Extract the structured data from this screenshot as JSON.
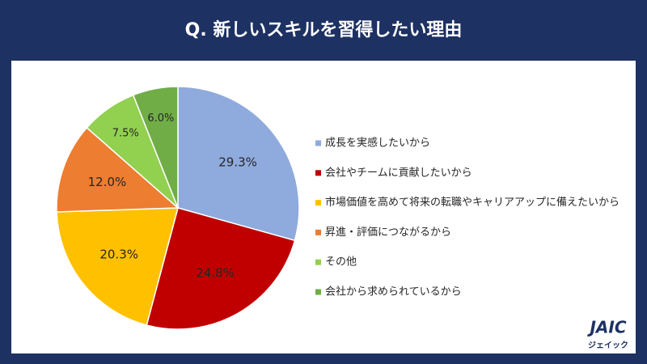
{
  "chart_data": {
    "type": "pie",
    "title": "Q. 新しいスキルを習得したい理由",
    "categories": [
      "成長を実感したいから",
      "会社やチームに貢献したいから",
      "市場価値を高めて将来の転職やキャリアアップに備えたいから",
      "昇進・評価につながるから",
      "その他",
      "会社から求められているから"
    ],
    "values": [
      29.3,
      24.8,
      20.3,
      12.0,
      7.5,
      6.0
    ],
    "value_labels": [
      "29.3%",
      "24.8%",
      "20.3%",
      "12.0%",
      "7.5%",
      "6.0%"
    ],
    "colors": [
      "#8faadc",
      "#c00000",
      "#ffc000",
      "#ed7d31",
      "#92d050",
      "#70ad47"
    ],
    "legend": "right"
  },
  "logo": {
    "name": "JAIC",
    "kana": "ジェイック"
  }
}
